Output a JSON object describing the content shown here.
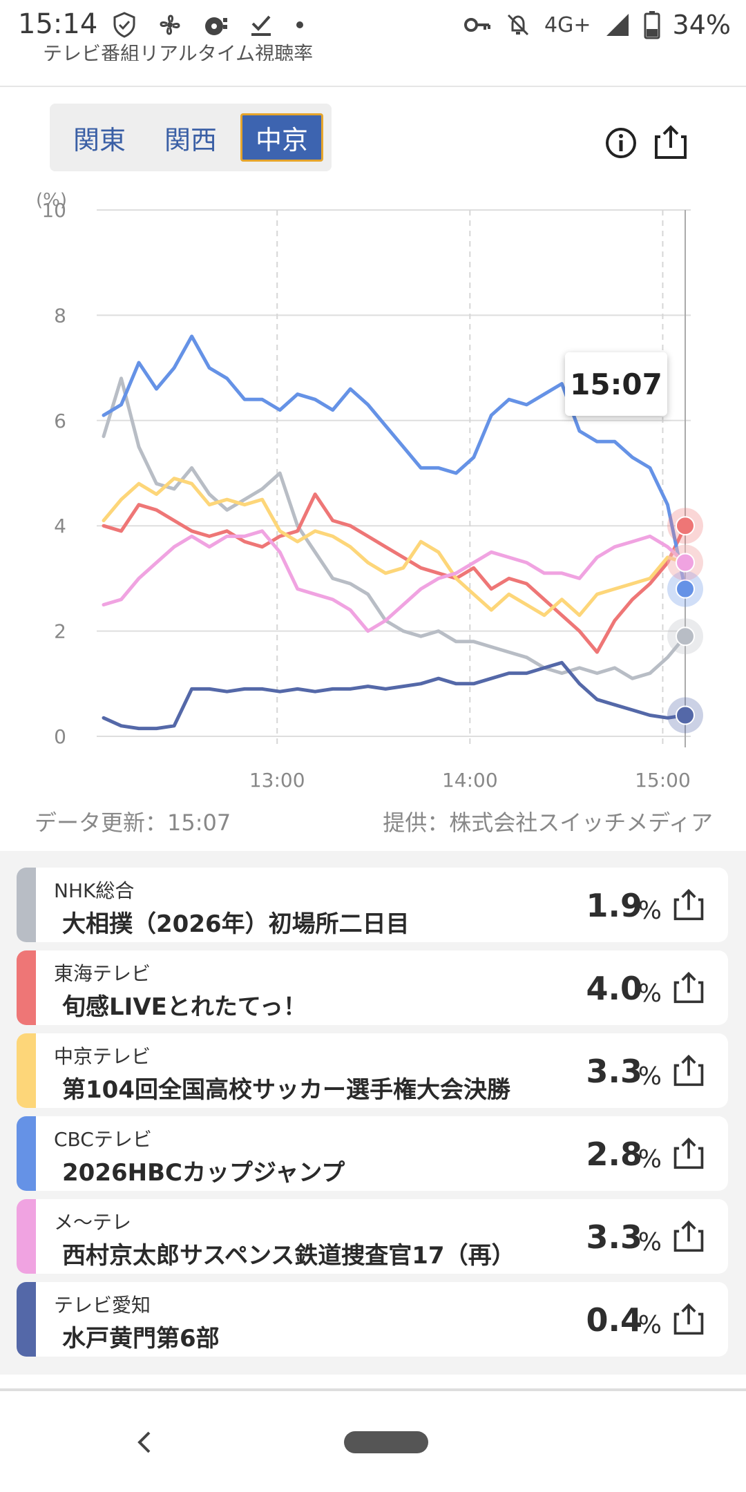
{
  "status_bar": {
    "time": "15:14",
    "network": "4G+",
    "battery": "34%",
    "icons": [
      "shield-check-icon",
      "fan-icon",
      "media-icon",
      "download-done-icon",
      "dot-icon",
      "key-icon",
      "bell-off-icon",
      "signal-icon",
      "battery-icon"
    ]
  },
  "header": {
    "title": "テレビ番組リアルタイム視聴率"
  },
  "regions": {
    "tabs": [
      "関東",
      "関西",
      "中京"
    ],
    "active": "中京"
  },
  "tooltip": {
    "time": "15:07"
  },
  "chart_data": {
    "type": "line",
    "ylabel": "(%)",
    "ylim": [
      0,
      10
    ],
    "yticks": [
      "0",
      "2",
      "4",
      "6",
      "8",
      "10"
    ],
    "xticks": [
      "13:00",
      "14:00",
      "15:00"
    ],
    "x_range": [
      "12:06",
      "15:07"
    ],
    "grid": true,
    "series": [
      {
        "name": "NHK総合",
        "color": "#b8bdc5",
        "values": [
          5.7,
          6.8,
          5.5,
          4.8,
          4.7,
          5.1,
          4.6,
          4.3,
          4.5,
          4.7,
          5.0,
          4.0,
          3.5,
          3.0,
          2.9,
          2.7,
          2.2,
          2.0,
          1.9,
          2.0,
          1.8,
          1.8,
          1.7,
          1.6,
          1.5,
          1.3,
          1.2,
          1.3,
          1.2,
          1.3,
          1.1,
          1.2,
          1.5,
          1.9
        ]
      },
      {
        "name": "東海テレビ",
        "color": "#ee7676",
        "values": [
          4.0,
          3.9,
          4.4,
          4.3,
          4.1,
          3.9,
          3.8,
          3.9,
          3.7,
          3.6,
          3.8,
          3.9,
          4.6,
          4.1,
          4.0,
          3.8,
          3.6,
          3.4,
          3.2,
          3.1,
          3.0,
          3.2,
          2.8,
          3.0,
          2.9,
          2.6,
          2.3,
          2.0,
          1.6,
          2.2,
          2.6,
          2.9,
          3.3,
          4.0
        ]
      },
      {
        "name": "中京テレビ",
        "color": "#fdd679",
        "values": [
          4.1,
          4.5,
          4.8,
          4.6,
          4.9,
          4.8,
          4.4,
          4.5,
          4.4,
          4.5,
          3.9,
          3.7,
          3.9,
          3.8,
          3.6,
          3.3,
          3.1,
          3.2,
          3.7,
          3.5,
          3.0,
          2.7,
          2.4,
          2.7,
          2.5,
          2.3,
          2.6,
          2.3,
          2.7,
          2.8,
          2.9,
          3.0,
          3.4,
          3.3
        ]
      },
      {
        "name": "CBCテレビ",
        "color": "#6592e6",
        "values": [
          6.1,
          6.3,
          7.1,
          6.6,
          7.0,
          7.6,
          7.0,
          6.8,
          6.4,
          6.4,
          6.2,
          6.5,
          6.4,
          6.2,
          6.6,
          6.3,
          5.9,
          5.5,
          5.1,
          5.1,
          5.0,
          5.3,
          6.1,
          6.4,
          6.3,
          6.5,
          6.7,
          5.8,
          5.6,
          5.6,
          5.3,
          5.1,
          4.4,
          2.8
        ]
      },
      {
        "name": "メ～テレ",
        "color": "#f0a3e1",
        "values": [
          2.5,
          2.6,
          3.0,
          3.3,
          3.6,
          3.8,
          3.6,
          3.8,
          3.8,
          3.9,
          3.5,
          2.8,
          2.7,
          2.6,
          2.4,
          2.0,
          2.2,
          2.5,
          2.8,
          3.0,
          3.1,
          3.3,
          3.5,
          3.4,
          3.3,
          3.1,
          3.1,
          3.0,
          3.4,
          3.6,
          3.7,
          3.8,
          3.6,
          3.3
        ]
      },
      {
        "name": "テレビ愛知",
        "color": "#5468a8",
        "values": [
          0.35,
          0.2,
          0.15,
          0.15,
          0.2,
          0.9,
          0.9,
          0.85,
          0.9,
          0.9,
          0.85,
          0.9,
          0.85,
          0.9,
          0.9,
          0.95,
          0.9,
          0.95,
          1.0,
          1.1,
          1.0,
          1.0,
          1.1,
          1.2,
          1.2,
          1.3,
          1.4,
          1.0,
          0.7,
          0.6,
          0.5,
          0.4,
          0.35,
          0.4
        ]
      }
    ]
  },
  "footer": {
    "updated": "データ更新：15:07",
    "provider": "提供：株式会社スイッチメディア"
  },
  "programs": [
    {
      "station": "NHK総合",
      "title": "大相撲（2026年）初場所二日目",
      "rating": "1.9",
      "unit": "%",
      "color": "#b8bdc5"
    },
    {
      "station": "東海テレビ",
      "title": "旬感LIVEとれたてっ！",
      "rating": "4.0",
      "unit": "%",
      "color": "#ee7676"
    },
    {
      "station": "中京テレビ",
      "title": "第104回全国高校サッカー選手権大会決勝",
      "rating": "3.3",
      "unit": "%",
      "color": "#fdd679"
    },
    {
      "station": "CBCテレビ",
      "title": "2026HBCカップジャンプ",
      "rating": "2.8",
      "unit": "%",
      "color": "#6592e6"
    },
    {
      "station": "メ～テレ",
      "title": "西村京太郎サスペンス鉄道捜査官17（再）",
      "rating": "3.3",
      "unit": "%",
      "color": "#f0a3e1"
    },
    {
      "station": "テレビ愛知",
      "title": "水戸黄門第6部",
      "rating": "0.4",
      "unit": "%",
      "color": "#5468a8"
    }
  ]
}
